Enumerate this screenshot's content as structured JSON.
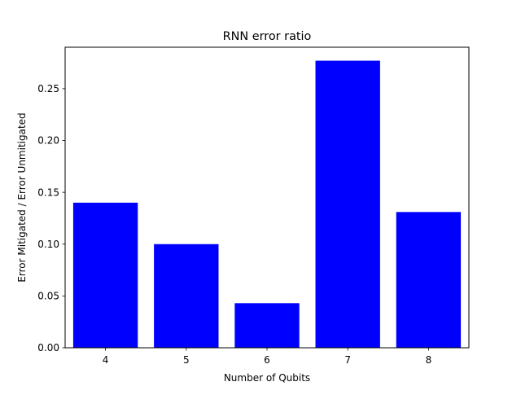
{
  "chart_data": {
    "type": "bar",
    "title": "RNN error ratio",
    "xlabel": "Number of Qubits",
    "ylabel": "Error Mitigated / Error Unmitigated",
    "categories": [
      "4",
      "5",
      "6",
      "7",
      "8"
    ],
    "values": [
      0.14,
      0.1,
      0.043,
      0.277,
      0.131
    ],
    "ylim": [
      0.0,
      0.29
    ],
    "yticks": [
      "0.00",
      "0.05",
      "0.10",
      "0.15",
      "0.20",
      "0.25"
    ],
    "bar_color": "#0000ff",
    "grid": false,
    "legend": "none"
  }
}
